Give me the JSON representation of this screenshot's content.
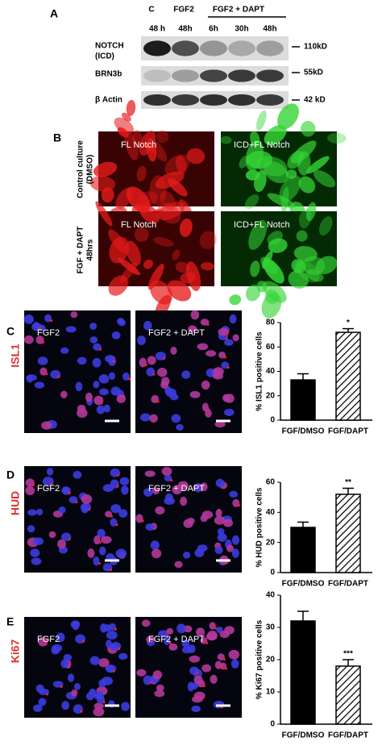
{
  "panel_a": {
    "label": "A",
    "groups": [
      "C",
      "FGF2",
      "FGF2 + DAPT"
    ],
    "lanes": [
      "48 h",
      "48h",
      "6h",
      "30h",
      "48h"
    ],
    "rows": [
      "NOTCH",
      "(ICD)",
      "BRN3b",
      "β Actin"
    ],
    "sizes": [
      "110kD",
      "55kD",
      "42 kD"
    ]
  },
  "panel_b": {
    "label": "B",
    "image_labels": [
      "FL  Notch",
      "ICD+FL Notch",
      "FL  Notch",
      "ICD+FL Notch"
    ],
    "row_labels": [
      [
        "Control culture",
        "(DMSO)"
      ],
      [
        "FGF + DAPT",
        "48hrs"
      ]
    ]
  },
  "panels": [
    {
      "label": "C",
      "marker": "ISL1",
      "image_labels": [
        "FGF2",
        "FGF2 + DAPT"
      ]
    },
    {
      "label": "D",
      "marker": "HUD",
      "image_labels": [
        "FGF2",
        "FGF2 + DAPT"
      ]
    },
    {
      "label": "E",
      "marker": "Ki67",
      "image_labels": [
        "FGF2",
        "FGF2 + DAPT"
      ]
    }
  ],
  "chart_data": [
    {
      "type": "bar",
      "ylabel": "% ISL1 positive cells",
      "categories": [
        "FGF/DMSO",
        "FGF/DAPT"
      ],
      "values": [
        33,
        72
      ],
      "errors": [
        5,
        3
      ],
      "value_annotations": [
        null,
        "*"
      ],
      "ylim": [
        0,
        80
      ],
      "yticks": [
        0,
        20,
        40,
        60,
        80
      ],
      "colors": [
        "#000000",
        "#ffffff"
      ],
      "hatch": [
        false,
        true
      ]
    },
    {
      "type": "bar",
      "ylabel": "% HUD positive cells",
      "categories": [
        "FGF/DMSO",
        "FGF/DAPT"
      ],
      "values": [
        30,
        52
      ],
      "errors": [
        3.5,
        4
      ],
      "value_annotations": [
        null,
        "**"
      ],
      "ylim": [
        0,
        60
      ],
      "yticks": [
        0,
        20,
        40,
        60
      ],
      "colors": [
        "#000000",
        "#ffffff"
      ],
      "hatch": [
        false,
        true
      ]
    },
    {
      "type": "bar",
      "ylabel": "% Ki67 positive cells",
      "categories": [
        "FGF/DMSO",
        "FGF/DAPT"
      ],
      "values": [
        32,
        18
      ],
      "errors": [
        3,
        2
      ],
      "value_annotations": [
        null,
        "***"
      ],
      "ylim": [
        0,
        40
      ],
      "yticks": [
        0,
        10,
        20,
        30,
        40
      ],
      "colors": [
        "#000000",
        "#ffffff"
      ],
      "hatch": [
        false,
        true
      ]
    }
  ]
}
